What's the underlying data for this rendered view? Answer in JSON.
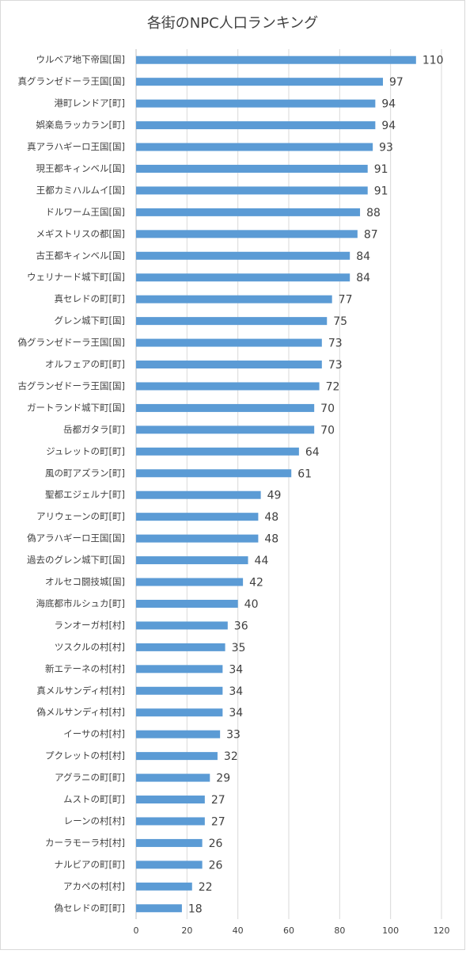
{
  "chart_data": {
    "type": "barh",
    "title": "各街のNPC人口ランキング",
    "categories": [
      "ウルベア地下帝国[国]",
      "真グランゼドーラ王国[国]",
      "港町レンドア[町]",
      "娯楽島ラッカラン[町]",
      "真アラハギーロ王国[国]",
      "現王都キィンベル[国]",
      "王都カミハルムイ[国]",
      "ドルワーム王国[国]",
      "メギストリスの都[国]",
      "古王都キィンベル[国]",
      "ウェリナード城下町[国]",
      "真セレドの町[町]",
      "グレン城下町[国]",
      "偽グランゼドーラ王国[国]",
      "オルフェアの町[町]",
      "古グランゼドーラ王国[国]",
      "ガートランド城下町[国]",
      "岳都ガタラ[町]",
      "ジュレットの町[町]",
      "風の町アズラン[町]",
      "聖都エジェルナ[町]",
      "アリウェーンの町[町]",
      "偽アラハギーロ王国[国]",
      "過去のグレン城下町[国]",
      "オルセコ闘技城[国]",
      "海底都市ルシュカ[町]",
      "ランオーガ村[村]",
      "ツスクルの村[村]",
      "新エテーネの村[村]",
      "真メルサンディ村[村]",
      "偽メルサンディ村[村]",
      "イーサの村[村]",
      "プクレットの村[村]",
      "アグラニの町[町]",
      "ムストの町[町]",
      "レーンの村[村]",
      "カーラモーラ村[村]",
      "ナルビアの町[町]",
      "アカペの村[村]",
      "偽セレドの町[町]"
    ],
    "values": [
      110,
      97,
      94,
      94,
      93,
      91,
      91,
      88,
      87,
      84,
      84,
      77,
      75,
      73,
      73,
      72,
      70,
      70,
      64,
      61,
      49,
      48,
      48,
      44,
      42,
      40,
      36,
      35,
      34,
      34,
      34,
      33,
      32,
      29,
      27,
      27,
      26,
      26,
      22,
      18
    ],
    "color": "#5b9bd5",
    "xlim": [
      0,
      120
    ],
    "xticks": [
      0,
      20,
      40,
      60,
      80,
      100,
      120
    ],
    "grid": true
  }
}
